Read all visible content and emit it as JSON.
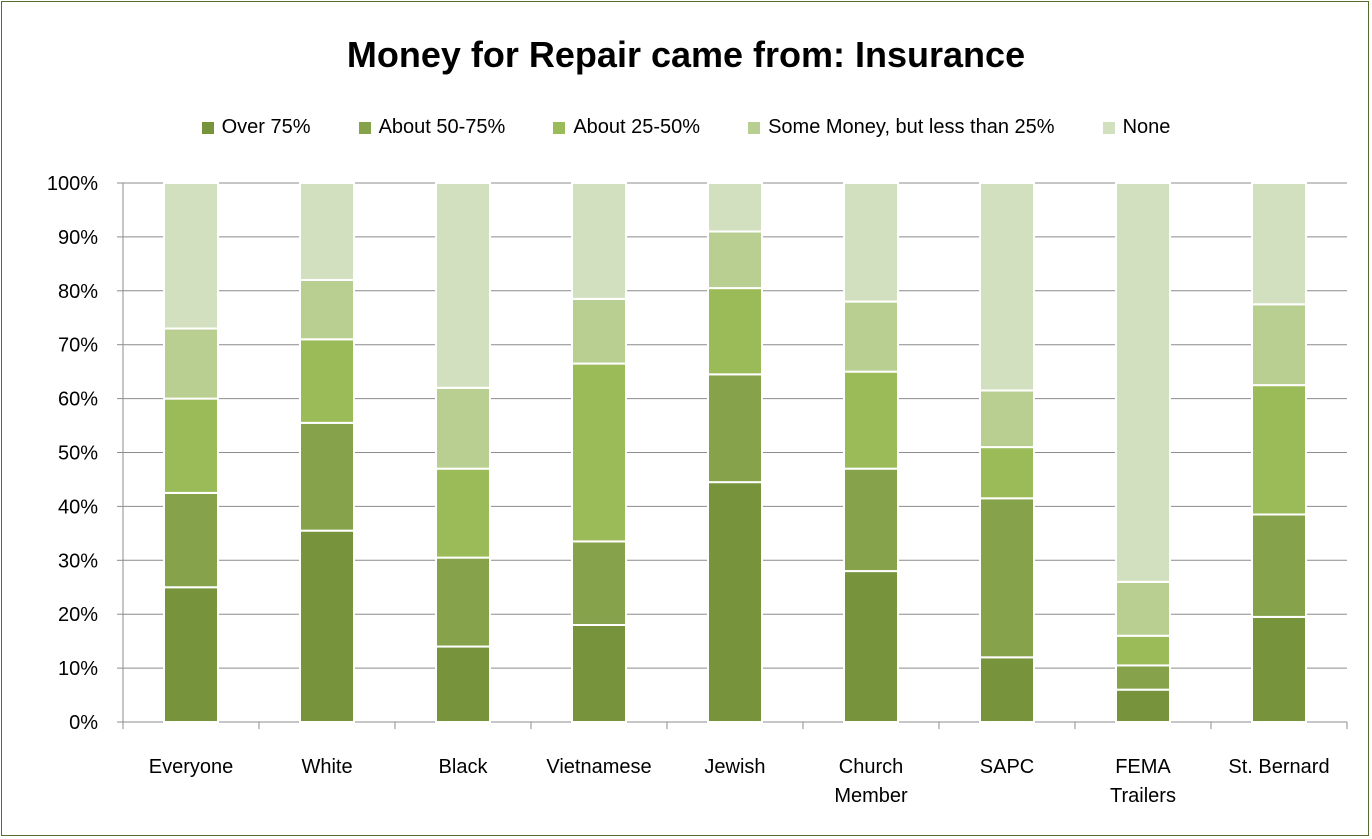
{
  "chart_data": {
    "type": "bar",
    "stacked": true,
    "title": "Money for Repair came from: Insurance",
    "categories": [
      "Everyone",
      "White",
      "Black",
      "Vietnamese",
      "Jewish",
      "Church Member",
      "SAPC",
      "FEMA Trailers",
      "St. Bernard"
    ],
    "category_lines": [
      [
        "Everyone"
      ],
      [
        "White"
      ],
      [
        "Black"
      ],
      [
        "Vietnamese"
      ],
      [
        "Jewish"
      ],
      [
        "Church",
        "Member"
      ],
      [
        "SAPC"
      ],
      [
        "FEMA",
        "Trailers"
      ],
      [
        "St. Bernard"
      ]
    ],
    "series": [
      {
        "name": "Over 75%",
        "color": "#77933c",
        "values": [
          25,
          35.5,
          14,
          18,
          44.5,
          28,
          12,
          6,
          19.5
        ]
      },
      {
        "name": "About 50-75%",
        "color": "#86a24a",
        "values": [
          17.5,
          20,
          16.5,
          15.5,
          20,
          19,
          29.5,
          4.5,
          19
        ]
      },
      {
        "name": "About 25-50%",
        "color": "#9bbb59",
        "values": [
          17.5,
          15.5,
          16.5,
          33,
          16,
          18,
          9.5,
          5.5,
          24
        ]
      },
      {
        "name": "Some Money, but less than 25%",
        "color": "#b9cf92",
        "values": [
          13,
          11,
          15,
          12,
          10.5,
          13,
          10.5,
          10,
          15
        ]
      },
      {
        "name": "None",
        "color": "#d3e0bf",
        "values": [
          27,
          18,
          38,
          21.5,
          9,
          22,
          38.5,
          74,
          22.5
        ]
      }
    ],
    "y_ticks": [
      "0%",
      "10%",
      "20%",
      "30%",
      "40%",
      "50%",
      "60%",
      "70%",
      "80%",
      "90%",
      "100%"
    ],
    "ylim": [
      0,
      100
    ],
    "grid": true,
    "legend_position": "top"
  }
}
